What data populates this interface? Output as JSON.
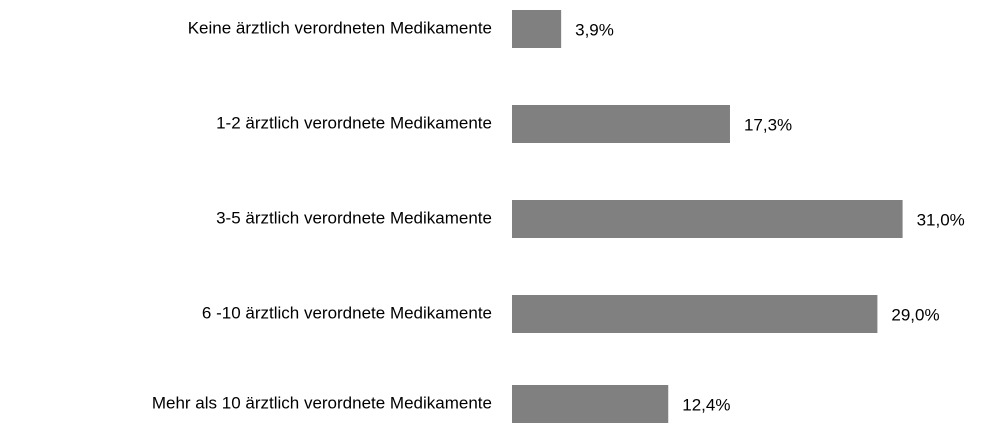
{
  "chart_data": {
    "type": "bar",
    "orientation": "horizontal",
    "categories": [
      "Keine ärztlich verordneten Medikamente",
      "1-2 ärztlich verordnete Medikamente",
      "3-5 ärztlich verordnete Medikamente",
      "6 -10 ärztlich verordnete Medikamente",
      "Mehr als 10 ärztlich verordnete Medikamente"
    ],
    "values": [
      3.9,
      17.3,
      31.0,
      29.0,
      12.4
    ],
    "value_labels": [
      "3,9%",
      "17,3%",
      "31,0%",
      "29,0%",
      "12,4%"
    ],
    "color": "#808080"
  }
}
